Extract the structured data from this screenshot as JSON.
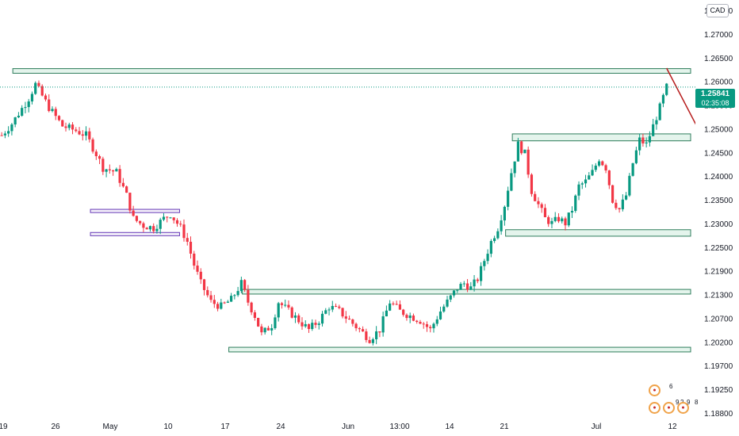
{
  "currency": "CAD",
  "last_price": "1.25841",
  "countdown": "02:35:08",
  "event_icons": [
    "flag-icon",
    "flag-icon",
    "flag-icon",
    "flag-icon",
    "flag-icon"
  ],
  "event_counts": [
    "6",
    "9",
    "2",
    "9",
    "8"
  ],
  "colors": {
    "up": "#089981",
    "down": "#f23645",
    "zone_green": "#2e7d5b",
    "zone_purple": "#673ab7",
    "arrow": "#b71c1c"
  },
  "chart_data": {
    "type": "candlestick",
    "symbol_currency": "CAD",
    "y_ticks": [
      "1.27500",
      "1.27000",
      "1.26500",
      "1.26000",
      "1.25500",
      "1.25000",
      "1.24500",
      "1.24000",
      "1.23500",
      "1.23000",
      "1.22500",
      "1.21900",
      "1.21300",
      "1.20700",
      "1.20200",
      "1.19700",
      "1.19250",
      "1.18800"
    ],
    "x_ticks": [
      "19",
      "26",
      "May",
      "10",
      "17",
      "24",
      "Jun",
      "13:00",
      "14",
      "21",
      "Jul",
      "12"
    ],
    "last_price": 1.25841,
    "price_path": [
      [
        0,
        1.248
      ],
      [
        3,
        1.2505
      ],
      [
        8,
        1.256
      ],
      [
        10,
        1.259
      ],
      [
        14,
        1.254
      ],
      [
        18,
        1.25
      ],
      [
        22,
        1.249
      ],
      [
        25,
        1.248
      ],
      [
        28,
        1.244
      ],
      [
        30,
        1.241
      ],
      [
        34,
        1.24
      ],
      [
        37,
        1.235
      ],
      [
        39,
        1.23
      ],
      [
        42,
        1.2285
      ],
      [
        45,
        1.228
      ],
      [
        48,
        1.23
      ],
      [
        50,
        1.231
      ],
      [
        53,
        1.228
      ],
      [
        55,
        1.225
      ],
      [
        57,
        1.22
      ],
      [
        59,
        1.216
      ],
      [
        62,
        1.212
      ],
      [
        65,
        1.211
      ],
      [
        68,
        1.2125
      ],
      [
        71,
        1.216
      ],
      [
        73,
        1.212
      ],
      [
        75,
        1.209
      ],
      [
        77,
        1.205
      ],
      [
        80,
        1.207
      ],
      [
        82,
        1.212
      ],
      [
        85,
        1.21
      ],
      [
        88,
        1.208
      ],
      [
        91,
        1.206
      ],
      [
        94,
        1.208
      ],
      [
        97,
        1.211
      ],
      [
        100,
        1.21
      ],
      [
        103,
        1.208
      ],
      [
        106,
        1.206
      ],
      [
        109,
        1.204
      ],
      [
        112,
        1.206
      ],
      [
        115,
        1.212
      ],
      [
        118,
        1.21
      ],
      [
        121,
        1.209
      ],
      [
        124,
        1.208
      ],
      [
        127,
        1.206
      ],
      [
        130,
        1.21
      ],
      [
        133,
        1.213
      ],
      [
        135,
        1.215
      ],
      [
        137,
        1.216
      ],
      [
        139,
        1.215
      ],
      [
        141,
        1.217
      ],
      [
        143,
        1.221
      ],
      [
        145,
        1.225
      ],
      [
        147,
        1.228
      ],
      [
        149,
        1.233
      ],
      [
        151,
        1.24
      ],
      [
        153,
        1.246
      ],
      [
        155,
        1.244
      ],
      [
        157,
        1.236
      ],
      [
        159,
        1.233
      ],
      [
        161,
        1.23
      ],
      [
        163,
        1.229
      ],
      [
        165,
        1.23
      ],
      [
        167,
        1.229
      ],
      [
        169,
        1.232
      ],
      [
        171,
        1.237
      ],
      [
        173,
        1.238
      ],
      [
        175,
        1.24
      ],
      [
        177,
        1.243
      ],
      [
        179,
        1.241
      ],
      [
        181,
        1.234
      ],
      [
        183,
        1.232
      ],
      [
        185,
        1.235
      ],
      [
        187,
        1.242
      ],
      [
        189,
        1.247
      ],
      [
        191,
        1.246
      ],
      [
        193,
        1.25
      ],
      [
        195,
        1.254
      ],
      [
        197,
        1.2584
      ]
    ],
    "price_range": [
      1.185,
      1.278
    ],
    "horizontal_zones": [
      {
        "from_index": 4,
        "to_index": "end",
        "low": 1.2614,
        "high": 1.2624,
        "color": "green"
      },
      {
        "from_index": 152,
        "to_index": "end",
        "low": 1.2468,
        "high": 1.2483,
        "color": "green"
      },
      {
        "from_index": 150,
        "to_index": "end",
        "low": 1.2262,
        "high": 1.2276,
        "color": "green"
      },
      {
        "from_index": 72,
        "to_index": "end",
        "low": 1.2137,
        "high": 1.2147,
        "color": "green"
      },
      {
        "from_index": 68,
        "to_index": "end",
        "low": 1.2012,
        "high": 1.2022,
        "color": "green"
      },
      {
        "from_index": 27,
        "to_index": 52,
        "low": 1.2313,
        "high": 1.232,
        "color": "purple"
      },
      {
        "from_index": 27,
        "to_index": 52,
        "low": 1.2263,
        "high": 1.227,
        "color": "purple"
      }
    ],
    "projection": [
      [
        197,
        1.2625
      ],
      [
        203,
        1.2475
      ]
    ],
    "grid": false,
    "legend": "none"
  }
}
